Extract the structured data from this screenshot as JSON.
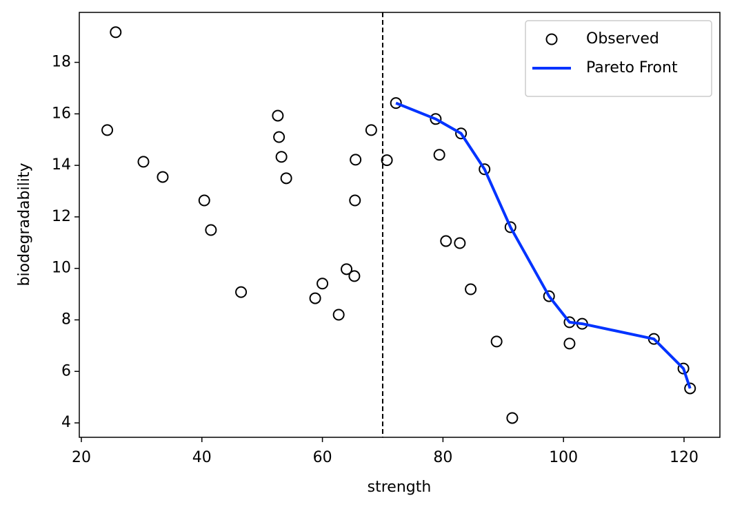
{
  "chart_data": {
    "type": "scatter",
    "xlabel": "strength",
    "ylabel": "biodegradability",
    "xlim": [
      19.66,
      125.95
    ],
    "ylim": [
      3.44,
      19.94
    ],
    "xticks": [
      20,
      40,
      60,
      80,
      100,
      120
    ],
    "yticks": [
      4,
      6,
      8,
      10,
      12,
      14,
      16,
      18
    ],
    "vline": 70,
    "legend": "upper right",
    "series": [
      {
        "name": "Observed",
        "type": "scatter",
        "color": "#000000",
        "x": [
          25.7,
          24.3,
          30.3,
          33.5,
          40.4,
          41.5,
          46.5,
          52.6,
          52.8,
          53.2,
          54.0,
          58.8,
          60.0,
          62.7,
          64.0,
          65.3,
          65.5,
          65.4,
          68.1,
          70.7,
          72.2,
          78.8,
          79.4,
          80.5,
          82.8,
          83.0,
          84.6,
          86.9,
          88.9,
          91.2,
          91.5,
          97.6,
          101.0,
          101.0,
          103.1,
          115.0,
          119.9,
          121.0
        ],
        "values": [
          19.17,
          15.37,
          14.14,
          13.55,
          12.64,
          11.49,
          9.08,
          15.93,
          15.1,
          14.33,
          13.5,
          8.84,
          9.41,
          8.2,
          9.97,
          9.7,
          14.22,
          12.64,
          15.37,
          14.2,
          16.42,
          15.8,
          14.41,
          11.06,
          10.98,
          15.24,
          9.19,
          13.85,
          7.16,
          11.6,
          4.19,
          8.92,
          7.91,
          7.08,
          7.85,
          7.26,
          6.11,
          5.34
        ]
      },
      {
        "name": "Pareto Front",
        "type": "line",
        "color": "#0033ff",
        "x": [
          72.2,
          78.8,
          83.0,
          86.9,
          91.2,
          97.6,
          101.0,
          103.1,
          115.0,
          119.9,
          121.0
        ],
        "values": [
          16.42,
          15.8,
          15.24,
          13.85,
          11.6,
          8.92,
          7.91,
          7.85,
          7.26,
          6.11,
          5.34
        ]
      }
    ]
  }
}
